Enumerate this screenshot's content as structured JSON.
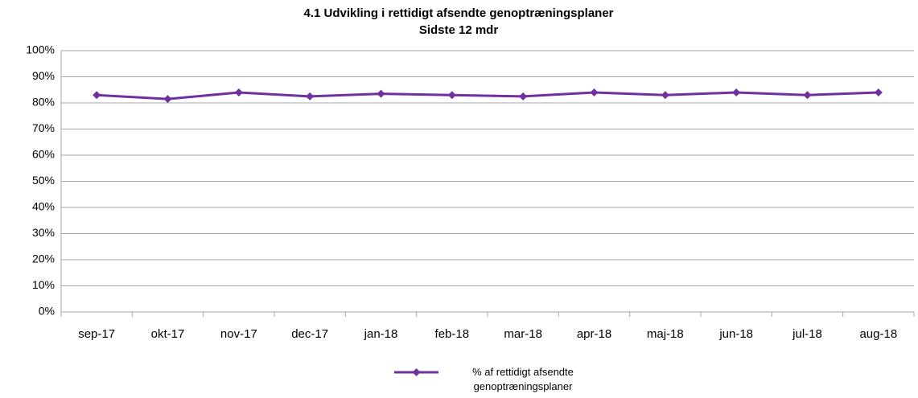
{
  "chart_data": {
    "type": "line",
    "title": "4.1 Udvikling i rettidigt afsendte genoptræningsplaner",
    "subtitle": "Sidste 12 mdr",
    "categories": [
      "sep-17",
      "okt-17",
      "nov-17",
      "dec-17",
      "jan-18",
      "feb-18",
      "mar-18",
      "apr-18",
      "maj-18",
      "jun-18",
      "jul-18",
      "aug-18"
    ],
    "series": [
      {
        "name": "% af rettidigt afsendte genoptræningsplaner",
        "color": "#7030a0",
        "values": [
          83,
          81.5,
          84,
          82.5,
          83.5,
          83,
          82.5,
          84,
          83,
          84,
          83,
          84
        ]
      }
    ],
    "ylim": [
      0,
      100
    ],
    "yticks": [
      {
        "value": 0,
        "label": "0%"
      },
      {
        "value": 10,
        "label": "10%"
      },
      {
        "value": 20,
        "label": "20%"
      },
      {
        "value": 30,
        "label": "30%"
      },
      {
        "value": 40,
        "label": "40%"
      },
      {
        "value": 50,
        "label": "50%"
      },
      {
        "value": 60,
        "label": "60%"
      },
      {
        "value": 70,
        "label": "70%"
      },
      {
        "value": 80,
        "label": "80%"
      },
      {
        "value": 90,
        "label": "90%"
      },
      {
        "value": 100,
        "label": "100%"
      }
    ],
    "grid": true,
    "legend": "bottom"
  }
}
